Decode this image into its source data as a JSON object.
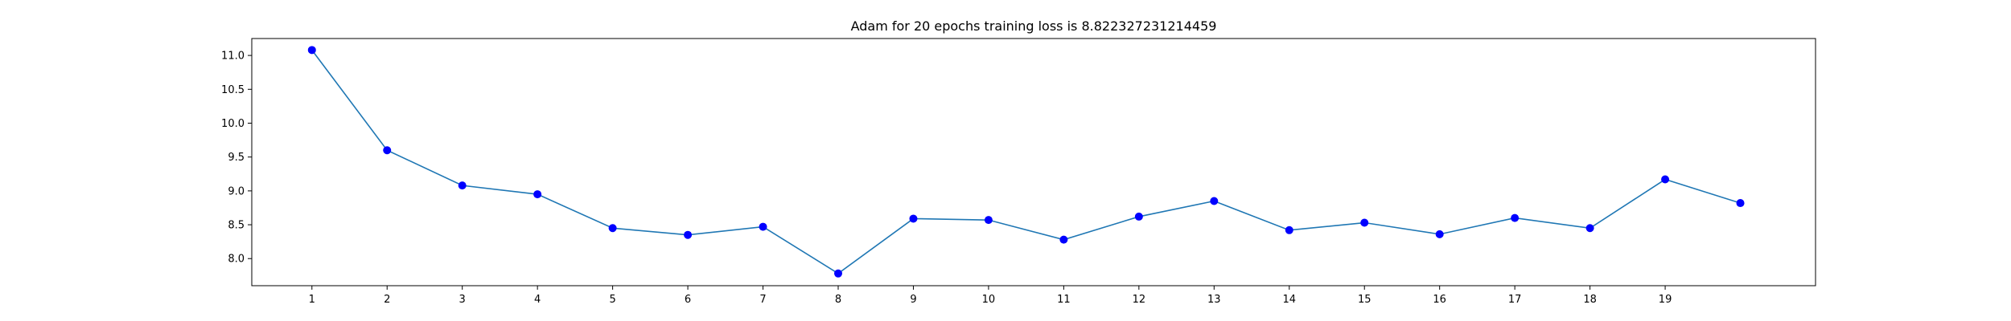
{
  "chart_data": {
    "type": "line",
    "title": "Adam for 20 epochs  training loss is 8.822327231214459",
    "xlabel": "",
    "ylabel": "",
    "x": [
      1,
      2,
      3,
      4,
      5,
      6,
      7,
      8,
      9,
      10,
      11,
      12,
      13,
      14,
      15,
      16,
      17,
      18,
      19,
      20
    ],
    "x_tick_labels": [
      "1",
      "2",
      "3",
      "4",
      "5",
      "6",
      "7",
      "8",
      "9",
      "10",
      "11",
      "12",
      "13",
      "14",
      "15",
      "16",
      "17",
      "18",
      "19"
    ],
    "series": [
      {
        "values": [
          11.08,
          9.6,
          9.08,
          8.95,
          8.45,
          8.35,
          8.47,
          7.78,
          8.59,
          8.57,
          8.28,
          8.62,
          8.85,
          8.42,
          8.53,
          8.36,
          8.6,
          8.45,
          9.17,
          8.82
        ],
        "line_color": "#1f77b4",
        "marker_color": "#0000ff"
      }
    ],
    "y_ticks": [
      "8.0",
      "8.5",
      "9.0",
      "9.5",
      "10.0",
      "10.5",
      "11.0"
    ],
    "xlim": [
      0.2,
      21.0
    ],
    "ylim": [
      7.6,
      11.25
    ],
    "grid": false,
    "legend": "none"
  }
}
